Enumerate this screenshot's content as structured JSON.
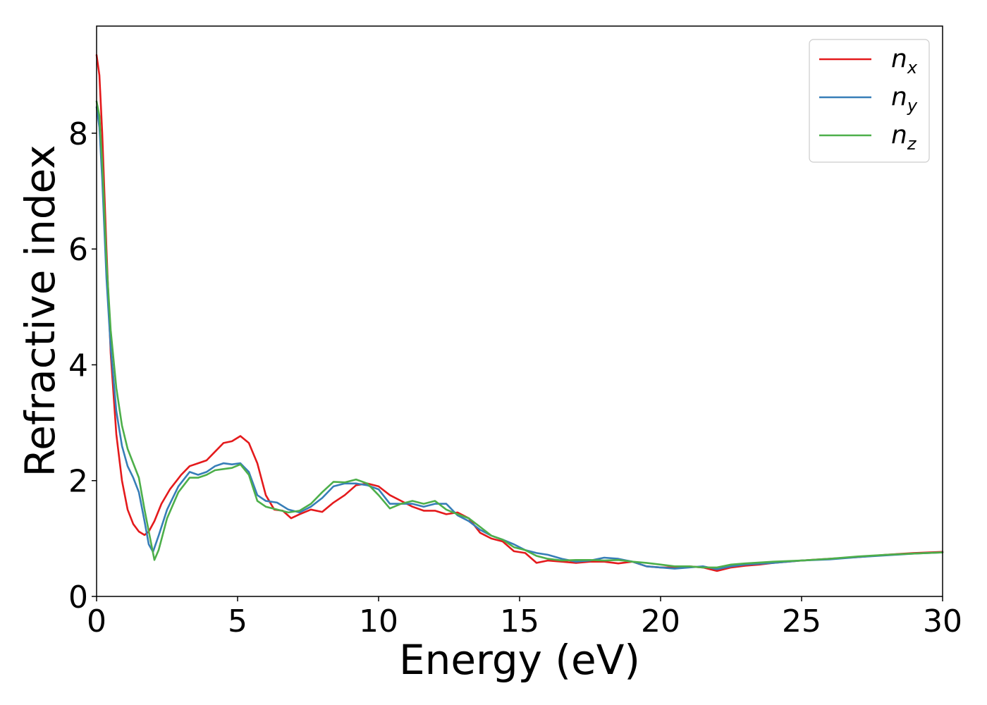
{
  "chart_data": {
    "type": "line",
    "title": "",
    "xlabel": "Energy (eV)",
    "ylabel": "Refractive index",
    "xlim": [
      0,
      30
    ],
    "ylim": [
      0,
      9.85
    ],
    "xticks": [
      0,
      5,
      10,
      15,
      20,
      25,
      30
    ],
    "yticks": [
      0,
      2,
      4,
      6,
      8
    ],
    "grid": false,
    "legend_position": "top-right",
    "series": [
      {
        "base": "n",
        "sub": "x",
        "color": "#e41a1c",
        "points": [
          [
            0,
            9.35
          ],
          [
            0.1,
            9.0
          ],
          [
            0.2,
            8.0
          ],
          [
            0.35,
            6.0
          ],
          [
            0.5,
            4.2
          ],
          [
            0.7,
            2.8
          ],
          [
            0.9,
            2.0
          ],
          [
            1.1,
            1.5
          ],
          [
            1.3,
            1.25
          ],
          [
            1.5,
            1.12
          ],
          [
            1.7,
            1.06
          ],
          [
            1.85,
            1.12
          ],
          [
            2.05,
            1.3
          ],
          [
            2.3,
            1.6
          ],
          [
            2.6,
            1.85
          ],
          [
            3.0,
            2.1
          ],
          [
            3.3,
            2.25
          ],
          [
            3.6,
            2.3
          ],
          [
            3.9,
            2.35
          ],
          [
            4.2,
            2.5
          ],
          [
            4.5,
            2.65
          ],
          [
            4.8,
            2.68
          ],
          [
            5.1,
            2.77
          ],
          [
            5.4,
            2.65
          ],
          [
            5.7,
            2.3
          ],
          [
            6.0,
            1.75
          ],
          [
            6.3,
            1.5
          ],
          [
            6.6,
            1.48
          ],
          [
            6.9,
            1.35
          ],
          [
            7.2,
            1.42
          ],
          [
            7.6,
            1.5
          ],
          [
            8.0,
            1.46
          ],
          [
            8.4,
            1.62
          ],
          [
            8.8,
            1.75
          ],
          [
            9.2,
            1.92
          ],
          [
            9.6,
            1.95
          ],
          [
            10.0,
            1.9
          ],
          [
            10.4,
            1.75
          ],
          [
            10.8,
            1.65
          ],
          [
            11.2,
            1.55
          ],
          [
            11.6,
            1.48
          ],
          [
            12.0,
            1.48
          ],
          [
            12.4,
            1.42
          ],
          [
            12.8,
            1.45
          ],
          [
            13.2,
            1.35
          ],
          [
            13.6,
            1.1
          ],
          [
            14.0,
            1.0
          ],
          [
            14.4,
            0.95
          ],
          [
            14.8,
            0.78
          ],
          [
            15.2,
            0.75
          ],
          [
            15.6,
            0.58
          ],
          [
            16.0,
            0.62
          ],
          [
            16.5,
            0.6
          ],
          [
            17.0,
            0.58
          ],
          [
            17.5,
            0.6
          ],
          [
            18.0,
            0.6
          ],
          [
            18.5,
            0.57
          ],
          [
            19.0,
            0.6
          ],
          [
            19.5,
            0.52
          ],
          [
            20.0,
            0.5
          ],
          [
            20.5,
            0.5
          ],
          [
            21.0,
            0.52
          ],
          [
            21.5,
            0.5
          ],
          [
            22.0,
            0.44
          ],
          [
            22.5,
            0.5
          ],
          [
            23.0,
            0.53
          ],
          [
            23.5,
            0.55
          ],
          [
            24.0,
            0.58
          ],
          [
            25.0,
            0.62
          ],
          [
            26.0,
            0.65
          ],
          [
            27.0,
            0.68
          ],
          [
            28.0,
            0.72
          ],
          [
            29.0,
            0.75
          ],
          [
            30.0,
            0.77
          ]
        ]
      },
      {
        "base": "n",
        "sub": "y",
        "color": "#377eb8",
        "points": [
          [
            0,
            8.45
          ],
          [
            0.1,
            8.1
          ],
          [
            0.2,
            7.2
          ],
          [
            0.35,
            5.5
          ],
          [
            0.5,
            4.3
          ],
          [
            0.7,
            3.2
          ],
          [
            0.9,
            2.6
          ],
          [
            1.1,
            2.25
          ],
          [
            1.3,
            2.05
          ],
          [
            1.5,
            1.8
          ],
          [
            1.7,
            1.3
          ],
          [
            1.85,
            0.9
          ],
          [
            2.0,
            0.77
          ],
          [
            2.2,
            1.05
          ],
          [
            2.5,
            1.5
          ],
          [
            2.9,
            1.9
          ],
          [
            3.3,
            2.15
          ],
          [
            3.6,
            2.1
          ],
          [
            3.9,
            2.15
          ],
          [
            4.2,
            2.25
          ],
          [
            4.5,
            2.3
          ],
          [
            4.8,
            2.28
          ],
          [
            5.1,
            2.3
          ],
          [
            5.4,
            2.15
          ],
          [
            5.7,
            1.75
          ],
          [
            6.0,
            1.65
          ],
          [
            6.4,
            1.62
          ],
          [
            6.8,
            1.5
          ],
          [
            7.2,
            1.45
          ],
          [
            7.6,
            1.55
          ],
          [
            8.0,
            1.7
          ],
          [
            8.4,
            1.9
          ],
          [
            8.8,
            1.95
          ],
          [
            9.2,
            1.95
          ],
          [
            9.6,
            1.92
          ],
          [
            10.0,
            1.85
          ],
          [
            10.4,
            1.6
          ],
          [
            10.8,
            1.6
          ],
          [
            11.2,
            1.6
          ],
          [
            11.6,
            1.55
          ],
          [
            12.0,
            1.6
          ],
          [
            12.4,
            1.6
          ],
          [
            12.8,
            1.4
          ],
          [
            13.2,
            1.3
          ],
          [
            13.6,
            1.15
          ],
          [
            14.0,
            1.05
          ],
          [
            14.4,
            0.98
          ],
          [
            14.8,
            0.9
          ],
          [
            15.2,
            0.8
          ],
          [
            15.6,
            0.75
          ],
          [
            16.0,
            0.72
          ],
          [
            16.5,
            0.65
          ],
          [
            17.0,
            0.6
          ],
          [
            17.5,
            0.62
          ],
          [
            18.0,
            0.67
          ],
          [
            18.5,
            0.65
          ],
          [
            19.0,
            0.6
          ],
          [
            19.5,
            0.52
          ],
          [
            20.0,
            0.5
          ],
          [
            20.5,
            0.48
          ],
          [
            21.0,
            0.5
          ],
          [
            21.5,
            0.52
          ],
          [
            22.0,
            0.47
          ],
          [
            22.5,
            0.52
          ],
          [
            23.0,
            0.55
          ],
          [
            24.0,
            0.58
          ],
          [
            25.0,
            0.62
          ],
          [
            26.0,
            0.64
          ],
          [
            27.0,
            0.68
          ],
          [
            28.0,
            0.71
          ],
          [
            29.0,
            0.74
          ],
          [
            30.0,
            0.76
          ]
        ]
      },
      {
        "base": "n",
        "sub": "z",
        "color": "#4daf4a",
        "points": [
          [
            0,
            8.55
          ],
          [
            0.1,
            8.3
          ],
          [
            0.2,
            7.5
          ],
          [
            0.35,
            5.8
          ],
          [
            0.5,
            4.6
          ],
          [
            0.7,
            3.6
          ],
          [
            0.9,
            2.95
          ],
          [
            1.1,
            2.55
          ],
          [
            1.3,
            2.3
          ],
          [
            1.5,
            2.05
          ],
          [
            1.7,
            1.5
          ],
          [
            1.9,
            1.0
          ],
          [
            2.05,
            0.63
          ],
          [
            2.2,
            0.8
          ],
          [
            2.5,
            1.35
          ],
          [
            2.9,
            1.8
          ],
          [
            3.3,
            2.05
          ],
          [
            3.6,
            2.05
          ],
          [
            3.9,
            2.1
          ],
          [
            4.2,
            2.18
          ],
          [
            4.5,
            2.2
          ],
          [
            4.8,
            2.22
          ],
          [
            5.1,
            2.28
          ],
          [
            5.4,
            2.1
          ],
          [
            5.7,
            1.65
          ],
          [
            6.0,
            1.55
          ],
          [
            6.4,
            1.5
          ],
          [
            6.8,
            1.45
          ],
          [
            7.2,
            1.48
          ],
          [
            7.6,
            1.6
          ],
          [
            8.0,
            1.8
          ],
          [
            8.4,
            1.98
          ],
          [
            8.8,
            1.97
          ],
          [
            9.2,
            2.02
          ],
          [
            9.6,
            1.95
          ],
          [
            10.0,
            1.75
          ],
          [
            10.4,
            1.52
          ],
          [
            10.8,
            1.6
          ],
          [
            11.2,
            1.65
          ],
          [
            11.6,
            1.6
          ],
          [
            12.0,
            1.65
          ],
          [
            12.4,
            1.5
          ],
          [
            12.8,
            1.42
          ],
          [
            13.2,
            1.35
          ],
          [
            13.6,
            1.2
          ],
          [
            14.0,
            1.05
          ],
          [
            14.4,
            0.98
          ],
          [
            14.8,
            0.85
          ],
          [
            15.2,
            0.8
          ],
          [
            15.6,
            0.7
          ],
          [
            16.0,
            0.65
          ],
          [
            16.5,
            0.62
          ],
          [
            17.0,
            0.63
          ],
          [
            17.5,
            0.63
          ],
          [
            18.0,
            0.62
          ],
          [
            18.5,
            0.63
          ],
          [
            19.0,
            0.6
          ],
          [
            19.5,
            0.58
          ],
          [
            20.0,
            0.55
          ],
          [
            20.5,
            0.52
          ],
          [
            21.0,
            0.52
          ],
          [
            21.5,
            0.5
          ],
          [
            22.0,
            0.5
          ],
          [
            22.5,
            0.55
          ],
          [
            23.0,
            0.57
          ],
          [
            24.0,
            0.6
          ],
          [
            25.0,
            0.62
          ],
          [
            26.0,
            0.65
          ],
          [
            27.0,
            0.69
          ],
          [
            28.0,
            0.72
          ],
          [
            29.0,
            0.74
          ],
          [
            30.0,
            0.76
          ]
        ]
      }
    ]
  }
}
